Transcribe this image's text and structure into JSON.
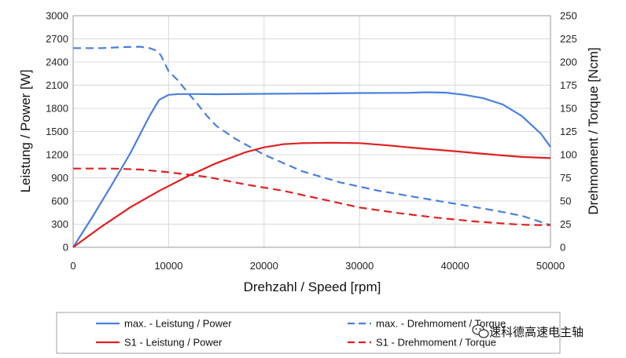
{
  "chart_data": {
    "type": "line",
    "title": "",
    "xlabel": "Drehzahl / Speed [rpm]",
    "ylabel_left": "Leistung / Power [W]",
    "ylabel_right": "Drehmoment / Torque [Ncm]",
    "xlim": [
      0,
      50000
    ],
    "ylim_left": [
      0,
      3000
    ],
    "ylim_right": [
      0,
      250
    ],
    "x_ticks": [
      "0",
      "10000",
      "20000",
      "30000",
      "40000",
      "50000"
    ],
    "y_left_ticks": [
      "0",
      "300",
      "600",
      "900",
      "1200",
      "1500",
      "1800",
      "2100",
      "2400",
      "2700",
      "3000"
    ],
    "y_right_ticks": [
      "0",
      "25",
      "50",
      "75",
      "100",
      "125",
      "150",
      "175",
      "200",
      "225",
      "250"
    ],
    "grid": true,
    "legend_position": "bottom",
    "series": [
      {
        "name": "max. - Leistung / Power",
        "axis": "left",
        "color": "#4a7fe0",
        "dash": "solid",
        "points": [
          [
            0,
            0
          ],
          [
            2000,
            390
          ],
          [
            4000,
            800
          ],
          [
            6000,
            1220
          ],
          [
            8000,
            1700
          ],
          [
            9000,
            1910
          ],
          [
            10000,
            1975
          ],
          [
            11000,
            1985
          ],
          [
            13000,
            1985
          ],
          [
            15000,
            1983
          ],
          [
            20000,
            1988
          ],
          [
            25000,
            1992
          ],
          [
            30000,
            1998
          ],
          [
            35000,
            2000
          ],
          [
            37000,
            2008
          ],
          [
            39000,
            2003
          ],
          [
            41000,
            1975
          ],
          [
            43000,
            1930
          ],
          [
            45000,
            1850
          ],
          [
            47000,
            1700
          ],
          [
            49000,
            1470
          ],
          [
            50000,
            1300
          ]
        ]
      },
      {
        "name": "max. - Drehmoment / Torque",
        "axis": "right",
        "color": "#4a7fe0",
        "dash": "dashed",
        "points": [
          [
            0,
            215
          ],
          [
            3000,
            215
          ],
          [
            5000,
            216
          ],
          [
            7000,
            216.5
          ],
          [
            8000,
            215
          ],
          [
            8800,
            212
          ],
          [
            9200,
            207
          ],
          [
            10000,
            190
          ],
          [
            11000,
            180
          ],
          [
            12000,
            167
          ],
          [
            13000,
            155
          ],
          [
            14000,
            142
          ],
          [
            15000,
            131
          ],
          [
            17000,
            117
          ],
          [
            20000,
            100
          ],
          [
            24000,
            82
          ],
          [
            28000,
            70
          ],
          [
            32000,
            61
          ],
          [
            36000,
            54
          ],
          [
            40000,
            47
          ],
          [
            44000,
            40
          ],
          [
            47000,
            34
          ],
          [
            50000,
            24
          ]
        ]
      },
      {
        "name": "S1 - Leistung / Power",
        "axis": "left",
        "color": "#e02020",
        "dash": "solid",
        "points": [
          [
            0,
            0
          ],
          [
            3000,
            270
          ],
          [
            6000,
            520
          ],
          [
            9000,
            730
          ],
          [
            12000,
            920
          ],
          [
            15000,
            1090
          ],
          [
            18000,
            1230
          ],
          [
            20000,
            1295
          ],
          [
            22000,
            1335
          ],
          [
            24000,
            1350
          ],
          [
            27000,
            1355
          ],
          [
            30000,
            1350
          ],
          [
            33000,
            1320
          ],
          [
            36000,
            1285
          ],
          [
            40000,
            1245
          ],
          [
            44000,
            1200
          ],
          [
            47000,
            1170
          ],
          [
            50000,
            1155
          ]
        ]
      },
      {
        "name": "S1 - Drehmoment / Torque",
        "axis": "right",
        "color": "#e02020",
        "dash": "dashed",
        "points": [
          [
            0,
            85
          ],
          [
            4000,
            85
          ],
          [
            7000,
            84
          ],
          [
            10000,
            81
          ],
          [
            14000,
            76
          ],
          [
            18000,
            68
          ],
          [
            22000,
            61
          ],
          [
            26000,
            52
          ],
          [
            30000,
            43
          ],
          [
            34000,
            37
          ],
          [
            38000,
            32
          ],
          [
            42000,
            28
          ],
          [
            46000,
            25
          ],
          [
            48000,
            24
          ],
          [
            50000,
            24
          ]
        ]
      }
    ]
  },
  "watermark": {
    "text": "速科德高速电主轴",
    "icon": "wechat-icon"
  }
}
